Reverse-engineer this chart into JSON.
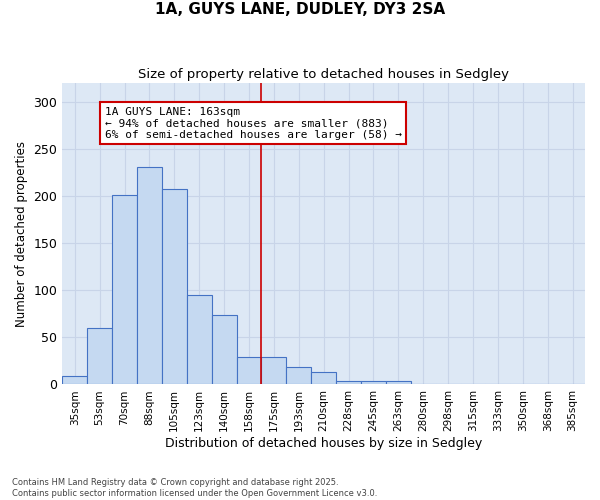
{
  "title": "1A, GUYS LANE, DUDLEY, DY3 2SA",
  "subtitle": "Size of property relative to detached houses in Sedgley",
  "xlabel": "Distribution of detached houses by size in Sedgley",
  "ylabel": "Number of detached properties",
  "categories": [
    "35sqm",
    "53sqm",
    "70sqm",
    "88sqm",
    "105sqm",
    "123sqm",
    "140sqm",
    "158sqm",
    "175sqm",
    "193sqm",
    "210sqm",
    "228sqm",
    "245sqm",
    "263sqm",
    "280sqm",
    "298sqm",
    "315sqm",
    "333sqm",
    "350sqm",
    "368sqm",
    "385sqm"
  ],
  "values": [
    9,
    60,
    201,
    231,
    208,
    95,
    74,
    29,
    29,
    19,
    13,
    4,
    4,
    4,
    0,
    0,
    0,
    1,
    0,
    1,
    0
  ],
  "bar_color": "#c5d9f1",
  "bar_edge_color": "#4472c4",
  "vline_x_index": 7.5,
  "annotation_text": "1A GUYS LANE: 163sqm\n← 94% of detached houses are smaller (883)\n6% of semi-detached houses are larger (58) →",
  "annotation_box_color": "#ffffff",
  "annotation_box_edge_color": "#cc0000",
  "vline_color": "#cc0000",
  "grid_color": "#c8d4e8",
  "background_color": "#dde8f5",
  "footer_text": "Contains HM Land Registry data © Crown copyright and database right 2025.\nContains public sector information licensed under the Open Government Licence v3.0.",
  "ylim": [
    0,
    320
  ],
  "yticks": [
    0,
    50,
    100,
    150,
    200,
    250,
    300
  ]
}
